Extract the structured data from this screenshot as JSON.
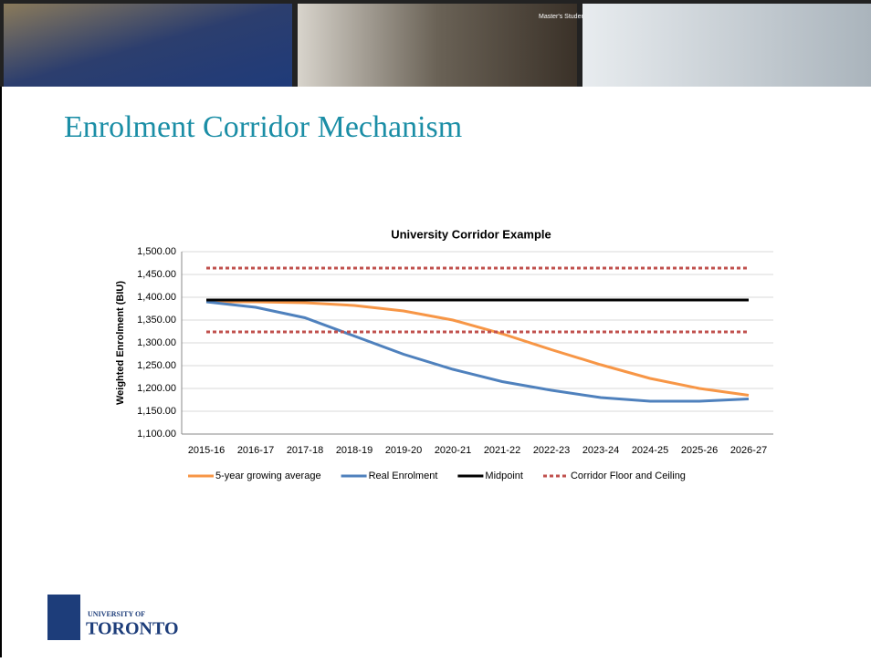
{
  "slide": {
    "title": "Enrolment Corridor Mechanism",
    "logo_top": "UNIVERSITY OF",
    "logo_bottom": "TORONTO",
    "photo_sign": "Master's Student Lounge"
  },
  "chart_data": {
    "type": "line",
    "title": "University Corridor Example",
    "ylabel": "Weighted Enrolment (BIU)",
    "categories": [
      "2015-16",
      "2016-17",
      "2017-18",
      "2018-19",
      "2019-20",
      "2020-21",
      "2021-22",
      "2022-23",
      "2023-24",
      "2024-25",
      "2025-26",
      "2026-27"
    ],
    "ylim": [
      1100,
      1500
    ],
    "yticks": [
      {
        "value": 1100,
        "label": "1,100.00"
      },
      {
        "value": 1150,
        "label": "1,150.00"
      },
      {
        "value": 1200,
        "label": "1,200.00"
      },
      {
        "value": 1250,
        "label": "1,250.00"
      },
      {
        "value": 1300,
        "label": "1,300.00"
      },
      {
        "value": 1350,
        "label": "1,350.00"
      },
      {
        "value": 1400,
        "label": "1,400.00"
      },
      {
        "value": 1450,
        "label": "1,450.00"
      },
      {
        "value": 1500,
        "label": "1,500.00"
      }
    ],
    "grid": true,
    "series": [
      {
        "name": "5-year growing average",
        "color": "#f79646",
        "dashed": false,
        "values": [
          1390,
          1390,
          1388,
          1382,
          1370,
          1350,
          1320,
          1285,
          1252,
          1222,
          1200,
          1185
        ]
      },
      {
        "name": "Real Enrolment",
        "color": "#4f81bd",
        "dashed": false,
        "values": [
          1390,
          1378,
          1355,
          1315,
          1275,
          1242,
          1215,
          1196,
          1180,
          1172,
          1172,
          1177
        ]
      },
      {
        "name": "Midpoint",
        "color": "#000000",
        "dashed": false,
        "values": [
          1394,
          1394,
          1394,
          1394,
          1394,
          1394,
          1394,
          1394,
          1394,
          1394,
          1394,
          1394
        ]
      },
      {
        "name": "Corridor Floor and Ceiling",
        "color": "#c0504d",
        "dashed": true,
        "values": [
          1464,
          1464,
          1464,
          1464,
          1464,
          1464,
          1464,
          1464,
          1464,
          1464,
          1464,
          1464
        ]
      },
      {
        "color": "#c0504d",
        "dashed": true,
        "values": [
          1324,
          1324,
          1324,
          1324,
          1324,
          1324,
          1324,
          1324,
          1324,
          1324,
          1324,
          1324
        ]
      }
    ]
  }
}
